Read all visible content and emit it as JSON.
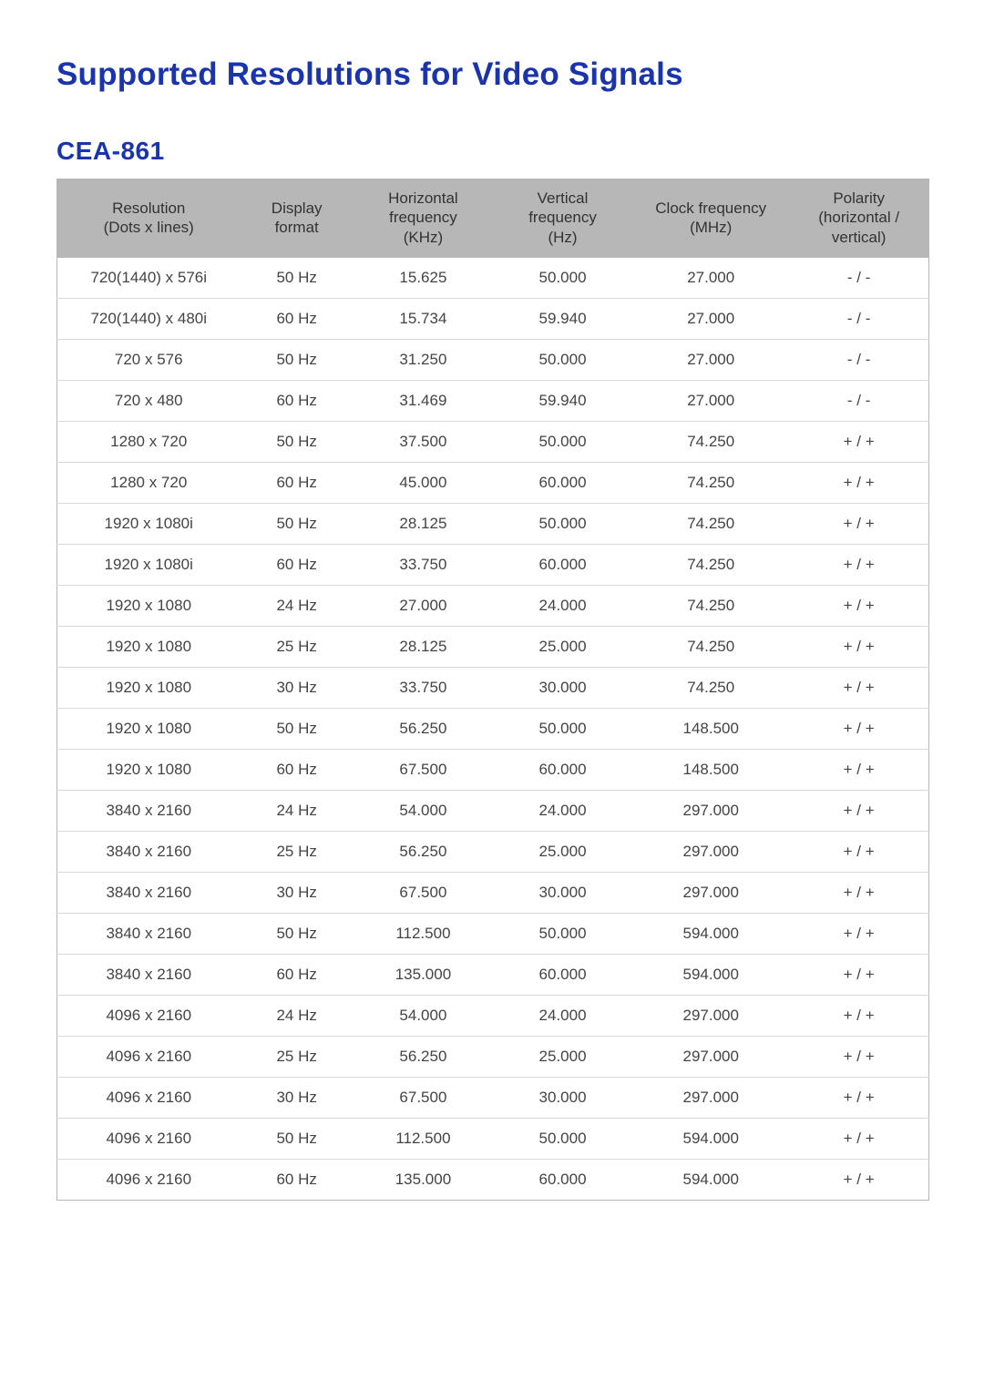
{
  "page": {
    "title": "Supported Resolutions for Video Signals",
    "subtitle": "CEA-861"
  },
  "table": {
    "type": "table",
    "background_color": "#ffffff",
    "header_bg": "#b7b7b7",
    "header_text_color": "#333333",
    "row_text_color": "#444444",
    "row_border_color": "#d9d9d9",
    "font_size_header": 17,
    "font_size_body": 17,
    "columns": [
      {
        "line1": "Resolution",
        "line2": "(Dots x lines)",
        "width_pct": 21,
        "align": "center"
      },
      {
        "line1": "Display",
        "line2": "format",
        "width_pct": 13,
        "align": "center"
      },
      {
        "line1": "Horizontal",
        "line2": "frequency",
        "line3": "(KHz)",
        "width_pct": 16,
        "align": "center"
      },
      {
        "line1": "Vertical",
        "line2": "frequency",
        "line3": "(Hz)",
        "width_pct": 16,
        "align": "center"
      },
      {
        "line1": "Clock frequency",
        "line2": "(MHz)",
        "width_pct": 18,
        "align": "center"
      },
      {
        "line1": "Polarity",
        "line2": "(horizontal /",
        "line3": "vertical)",
        "width_pct": 16,
        "align": "center"
      }
    ],
    "rows": [
      [
        "720(1440) x 576i",
        "50 Hz",
        "15.625",
        "50.000",
        "27.000",
        "- / -"
      ],
      [
        "720(1440) x 480i",
        "60 Hz",
        "15.734",
        "59.940",
        "27.000",
        "- / -"
      ],
      [
        "720 x 576",
        "50 Hz",
        "31.250",
        "50.000",
        "27.000",
        "- / -"
      ],
      [
        "720 x 480",
        "60 Hz",
        "31.469",
        "59.940",
        "27.000",
        "- / -"
      ],
      [
        "1280 x 720",
        "50 Hz",
        "37.500",
        "50.000",
        "74.250",
        "+ / +"
      ],
      [
        "1280 x 720",
        "60 Hz",
        "45.000",
        "60.000",
        "74.250",
        "+ / +"
      ],
      [
        "1920 x 1080i",
        "50 Hz",
        "28.125",
        "50.000",
        "74.250",
        "+ / +"
      ],
      [
        "1920 x 1080i",
        "60 Hz",
        "33.750",
        "60.000",
        "74.250",
        "+ / +"
      ],
      [
        "1920 x 1080",
        "24 Hz",
        "27.000",
        "24.000",
        "74.250",
        "+ / +"
      ],
      [
        "1920 x 1080",
        "25 Hz",
        "28.125",
        "25.000",
        "74.250",
        "+ / +"
      ],
      [
        "1920 x 1080",
        "30 Hz",
        "33.750",
        "30.000",
        "74.250",
        "+ / +"
      ],
      [
        "1920 x 1080",
        "50 Hz",
        "56.250",
        "50.000",
        "148.500",
        "+ / +"
      ],
      [
        "1920 x 1080",
        "60 Hz",
        "67.500",
        "60.000",
        "148.500",
        "+ / +"
      ],
      [
        "3840 x 2160",
        "24 Hz",
        "54.000",
        "24.000",
        "297.000",
        "+ / +"
      ],
      [
        "3840 x 2160",
        "25 Hz",
        "56.250",
        "25.000",
        "297.000",
        "+ / +"
      ],
      [
        "3840 x 2160",
        "30 Hz",
        "67.500",
        "30.000",
        "297.000",
        "+ / +"
      ],
      [
        "3840 x 2160",
        "50 Hz",
        "112.500",
        "50.000",
        "594.000",
        "+ / +"
      ],
      [
        "3840 x 2160",
        "60 Hz",
        "135.000",
        "60.000",
        "594.000",
        "+ / +"
      ],
      [
        "4096 x 2160",
        "24 Hz",
        "54.000",
        "24.000",
        "297.000",
        "+ / +"
      ],
      [
        "4096 x 2160",
        "25 Hz",
        "56.250",
        "25.000",
        "297.000",
        "+ / +"
      ],
      [
        "4096 x 2160",
        "30 Hz",
        "67.500",
        "30.000",
        "297.000",
        "+ / +"
      ],
      [
        "4096 x 2160",
        "50 Hz",
        "112.500",
        "50.000",
        "594.000",
        "+ / +"
      ],
      [
        "4096 x 2160",
        "60 Hz",
        "135.000",
        "60.000",
        "594.000",
        "+ / +"
      ]
    ]
  },
  "colors": {
    "title_color": "#1934ac",
    "subtitle_color": "#1934ac",
    "page_background": "#ffffff"
  }
}
